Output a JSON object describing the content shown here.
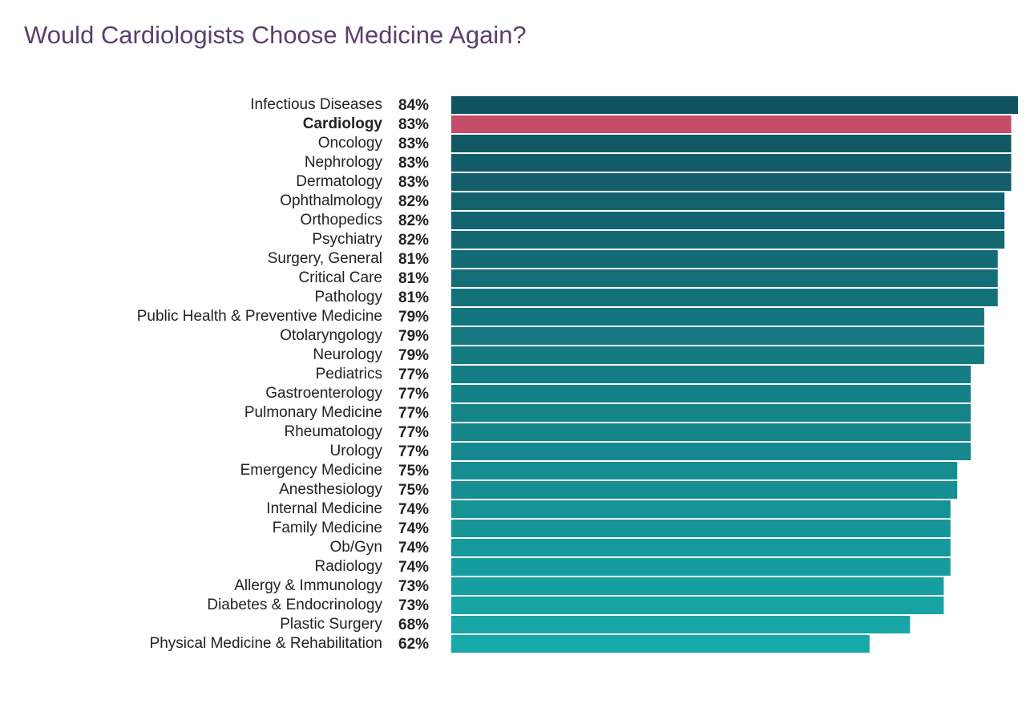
{
  "chart_data": {
    "type": "hbar",
    "title": "Would Cardiologists Choose Medicine Again?",
    "categories": [
      "Infectious Diseases",
      "Cardiology",
      "Oncology",
      "Nephrology",
      "Dermatology",
      "Ophthalmology",
      "Orthopedics",
      "Psychiatry",
      "Surgery, General",
      "Critical Care",
      "Pathology",
      "Public Health & Preventive Medicine",
      "Otolaryngology",
      "Neurology",
      "Pediatrics",
      "Gastroenterology",
      "Pulmonary Medicine",
      "Rheumatology",
      "Urology",
      "Emergency Medicine",
      "Anesthesiology",
      "Internal Medicine",
      "Family Medicine",
      "Ob/Gyn",
      "Radiology",
      "Allergy & Immunology",
      "Diabetes & Endocrinology",
      "Plastic Surgery",
      "Physical Medicine & Rehabilitation"
    ],
    "values": [
      84,
      83,
      83,
      83,
      83,
      82,
      82,
      82,
      81,
      81,
      81,
      79,
      79,
      79,
      77,
      77,
      77,
      77,
      77,
      75,
      75,
      74,
      74,
      74,
      74,
      73,
      73,
      68,
      62
    ],
    "value_labels": [
      "84%",
      "83%",
      "83%",
      "83%",
      "83%",
      "82%",
      "82%",
      "82%",
      "81%",
      "81%",
      "81%",
      "79%",
      "79%",
      "79%",
      "77%",
      "77%",
      "77%",
      "77%",
      "77%",
      "75%",
      "75%",
      "74%",
      "74%",
      "74%",
      "74%",
      "73%",
      "73%",
      "68%",
      "62%"
    ],
    "color_range": [
      "#115260",
      "#17a8a9"
    ],
    "highlight": "Cardiology",
    "highlight_color": "#c54c68",
    "title_color": "#5b3f6e"
  }
}
